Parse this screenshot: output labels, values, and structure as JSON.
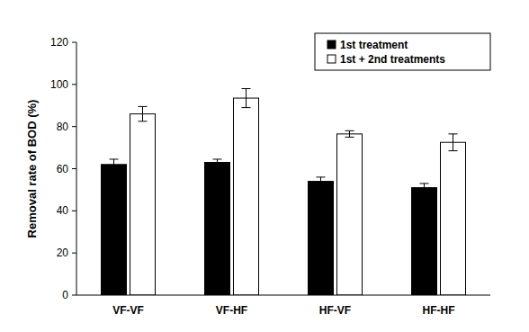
{
  "chart_data": {
    "type": "bar",
    "y_label": "Removal rate of BOD (%)",
    "categories": [
      "VF-VF",
      "VF-HF",
      "HF-VF",
      "HF-HF"
    ],
    "series": [
      {
        "name": "1st treatment",
        "color": "#000000",
        "values": [
          62,
          63,
          54,
          51
        ],
        "errors": [
          2.5,
          1.5,
          2,
          2
        ]
      },
      {
        "name": "1st + 2nd treatments",
        "color": "#ffffff",
        "values": [
          86,
          93.5,
          76.5,
          72.5
        ],
        "errors": [
          3.5,
          4.5,
          1.5,
          4
        ]
      }
    ],
    "ylim": [
      0,
      120
    ],
    "yticks": [
      0,
      20,
      40,
      60,
      80,
      100,
      120
    ],
    "grid": false,
    "legend": "upper right"
  }
}
